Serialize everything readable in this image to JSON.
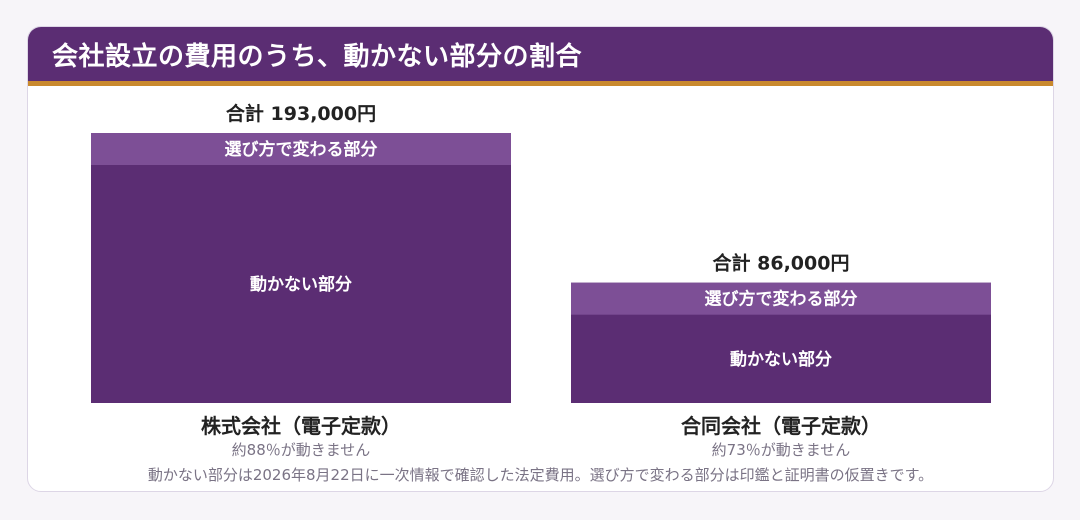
{
  "header": {
    "title": "会社設立の費用のうち、動かない部分の割合"
  },
  "chart_data": {
    "type": "bar",
    "stacked": true,
    "categories": [
      "株式会社（電子定款）",
      "合同会社（電子定款）"
    ],
    "series": [
      {
        "name": "動かない部分",
        "values": [
          170000,
          63000
        ]
      },
      {
        "name": "選び方で変わる部分",
        "values": [
          23000,
          23000
        ]
      }
    ],
    "total_labels": [
      "合計 193,000円",
      "合計 86,000円"
    ],
    "totals": [
      193000,
      86000
    ],
    "sub_labels": [
      "約88％が動きません",
      "約73％が動きません"
    ],
    "unit": "円",
    "ylim": [
      0,
      193000
    ],
    "colors": {
      "fixed": "#5b2d73",
      "variable": "#7d4f96",
      "header": "#5b2d73",
      "accent": "#c9892d"
    }
  },
  "footnote": "動かない部分は2026年8月22日に一次情報で確認した法定費用。選び方で変わる部分は印鑑と証明書の仮置きです。"
}
